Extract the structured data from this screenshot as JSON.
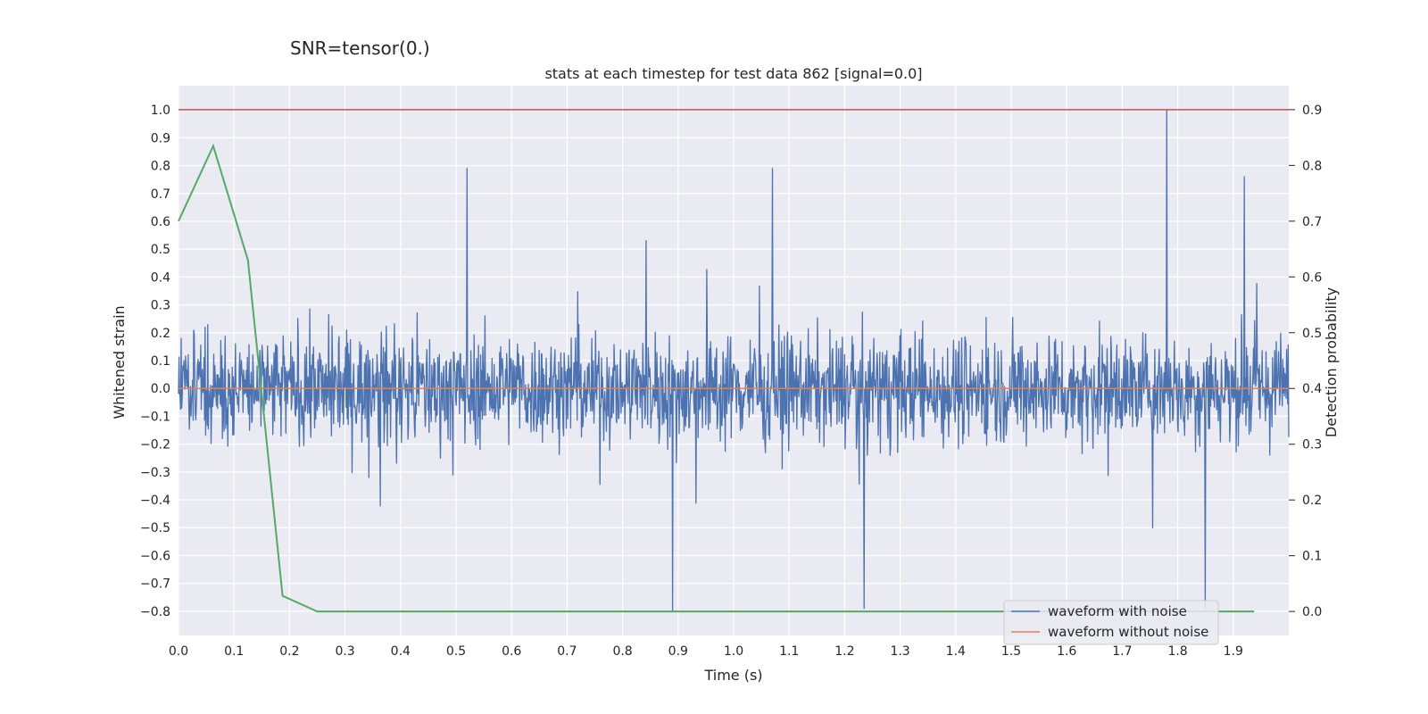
{
  "suptitle": "SNR=tensor(0.)",
  "chart_data": {
    "type": "line",
    "title": "stats at each timestep for test data 862 [signal=0.0]",
    "xlabel": "Time (s)",
    "ylabel_left": "Whitened strain",
    "ylabel_right": "Detection probability",
    "xlim": [
      0.0,
      2.0
    ],
    "ylim_left": [
      -0.887,
      1.087
    ],
    "ylim_right": [
      -0.043,
      0.943
    ],
    "x_ticks": [
      "0.0",
      "0.1",
      "0.2",
      "0.3",
      "0.4",
      "0.5",
      "0.6",
      "0.7",
      "0.8",
      "0.9",
      "1.0",
      "1.1",
      "1.2",
      "1.3",
      "1.4",
      "1.5",
      "1.6",
      "1.7",
      "1.8",
      "1.9"
    ],
    "y_ticks_left": [
      "1.0",
      "0.9",
      "0.8",
      "0.7",
      "0.6",
      "0.5",
      "0.4",
      "0.3",
      "0.2",
      "0.1",
      "0.0",
      "−0.1",
      "−0.2",
      "−0.3",
      "−0.4",
      "−0.5",
      "−0.6",
      "−0.7",
      "−0.8"
    ],
    "y_ticks_right": [
      "0.9",
      "0.8",
      "0.7",
      "0.6",
      "0.5",
      "0.4",
      "0.3",
      "0.2",
      "0.1",
      "0.0"
    ],
    "grid": true,
    "legend_position": "lower right",
    "series": [
      {
        "name": "waveform with noise",
        "axis": "left",
        "color": "#4c72b0",
        "x_range": [
          0.0,
          2.0
        ],
        "num_points": 2048,
        "min": -0.8,
        "max": 1.0,
        "notable_points": [
          [
            0.52,
            0.79
          ],
          [
            0.89,
            -0.8
          ],
          [
            1.07,
            0.79
          ],
          [
            1.235,
            -0.79
          ],
          [
            1.78,
            1.0
          ],
          [
            1.85,
            -0.79
          ],
          [
            1.92,
            0.76
          ]
        ]
      },
      {
        "name": "waveform without noise",
        "axis": "left",
        "color": "#dd8452",
        "x": [
          0.0,
          2.0
        ],
        "y": [
          0.0,
          0.0
        ]
      },
      {
        "name": "",
        "axis": "right",
        "color": "#55a868",
        "x": [
          0.0,
          0.0625,
          0.125,
          0.1875,
          0.25,
          0.3125,
          0.375,
          0.4375,
          0.5,
          0.5625,
          0.625,
          0.6875,
          0.75,
          0.8125,
          0.875,
          0.9375,
          1.0,
          1.0625,
          1.125,
          1.1875,
          1.25,
          1.3125,
          1.375,
          1.4375,
          1.5,
          1.5625,
          1.625,
          1.6875,
          1.75,
          1.8125,
          1.875,
          1.9375
        ],
        "y": [
          0.7,
          0.835,
          0.63,
          0.028,
          0.0,
          0.0,
          0.0,
          0.0,
          0.0,
          0.0,
          0.0,
          0.0,
          0.0,
          0.0,
          0.0,
          0.0,
          0.0,
          0.0,
          0.0,
          0.0,
          0.0,
          0.0,
          0.0,
          0.0,
          0.0,
          0.0,
          0.0,
          0.0,
          0.0,
          0.0,
          0.0,
          0.0
        ]
      },
      {
        "name": "",
        "axis": "right",
        "color": "#c44e52",
        "type": "hline",
        "y": 0.9
      }
    ]
  }
}
